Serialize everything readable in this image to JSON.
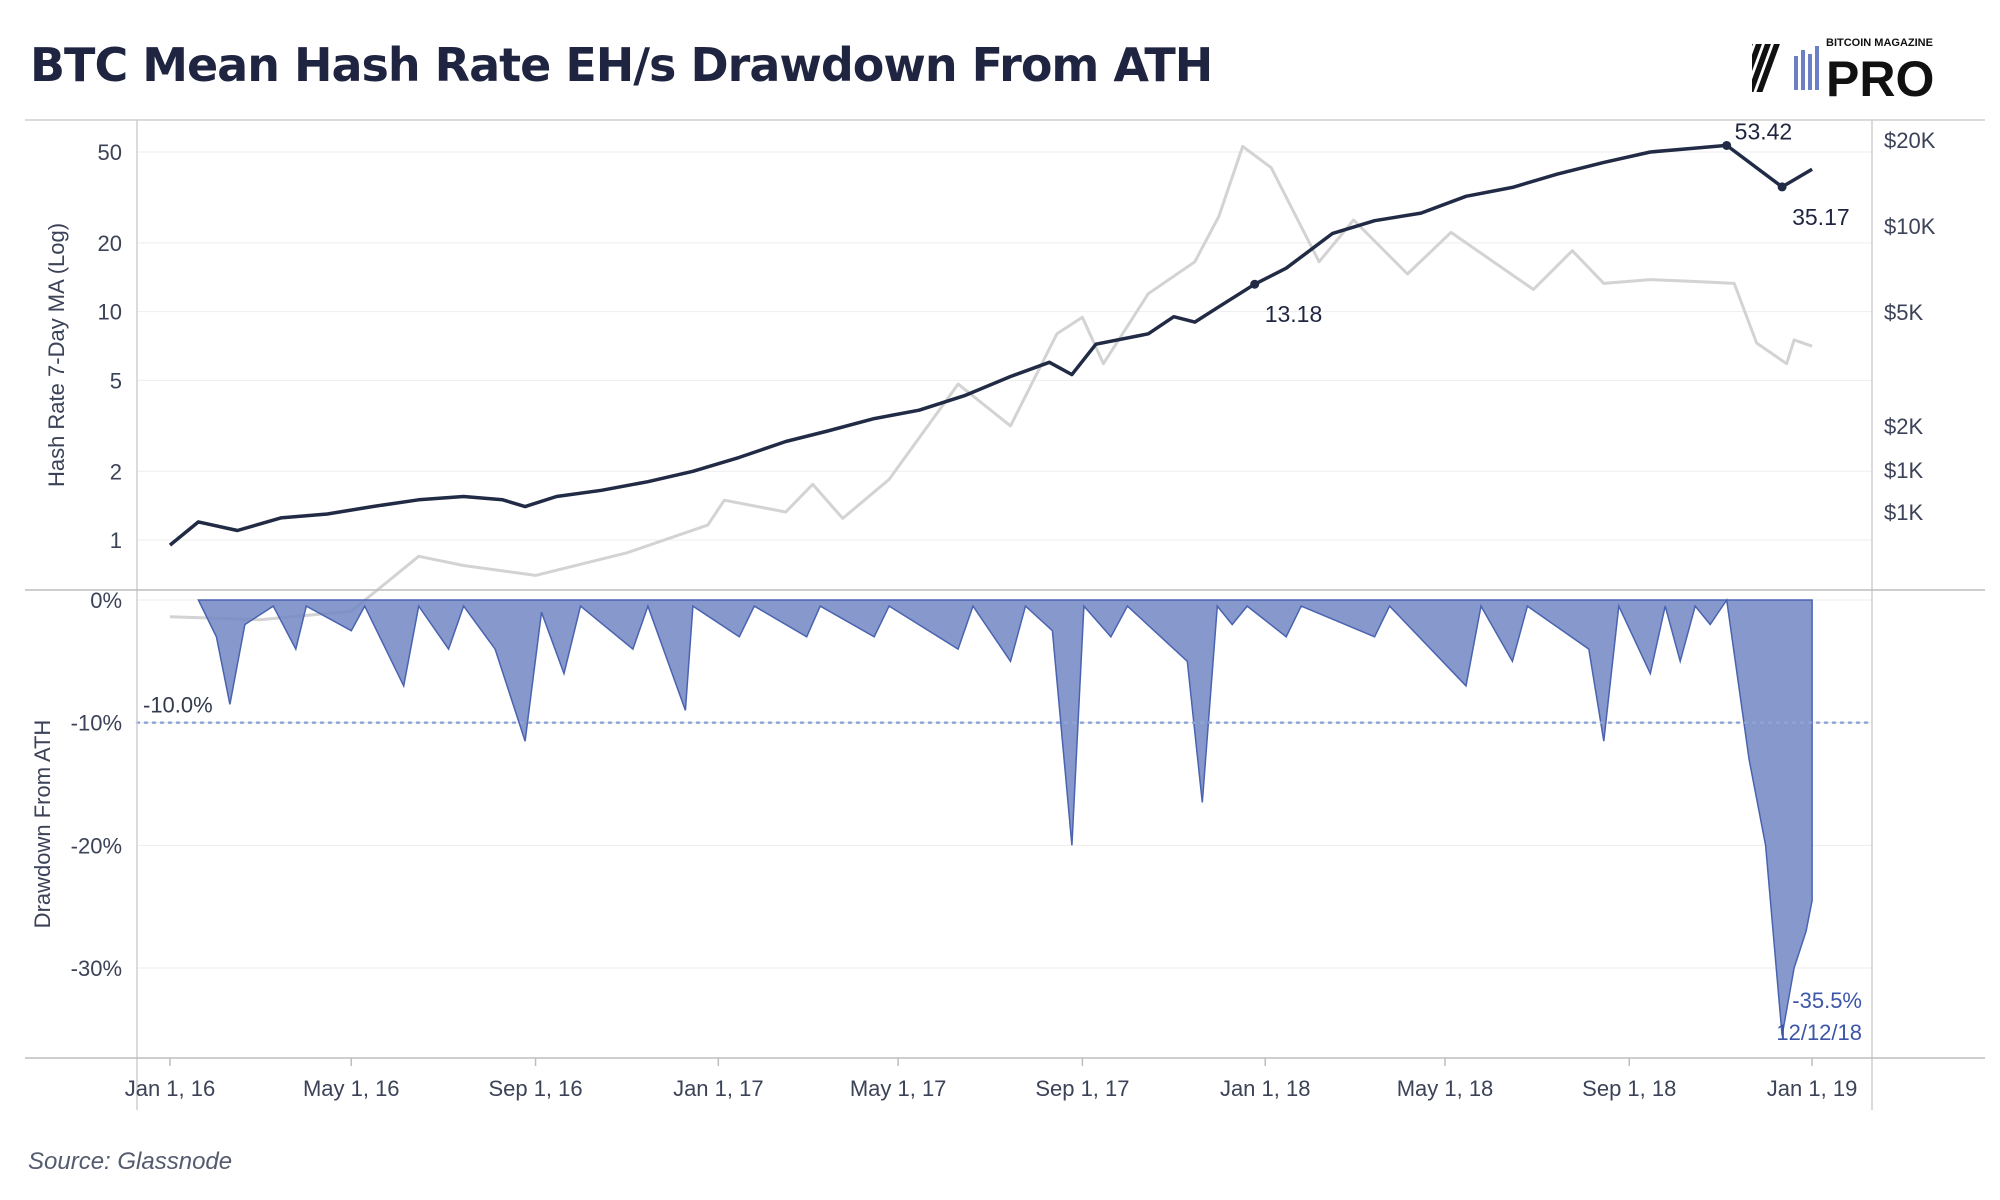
{
  "title": "BTC Mean Hash Rate EH/s Drawdown From ATH",
  "source": "Source: Glassnode",
  "logo": {
    "top": "BITCOIN MAGAZINE",
    "bottom": "PRO"
  },
  "colors": {
    "title": "#1f2540",
    "hash_rate": "#222b45",
    "price": "#d3d3d3",
    "drawdown_fill": "#7186c3",
    "drawdown_line": "#4a63b0",
    "reference_line": "#8fa3d6",
    "drawdown_label": "#3d56a8"
  },
  "chart_data": [
    {
      "type": "line",
      "y_scale": "log",
      "ylabel": "Hash Rate 7-Day MA (Log)",
      "y_ticks": [
        "1",
        "2",
        "5",
        "10",
        "20",
        "50"
      ],
      "y2_ticks": [
        "$1K",
        "$1K",
        "$2K",
        "$5K",
        "$10K",
        "$20K"
      ],
      "xlim": [
        "2015-12-10",
        "2019-02-10"
      ],
      "series": [
        {
          "role": "hash_rate",
          "unit": "EH/s",
          "points": [
            [
              "2016-01-01",
              0.95
            ],
            [
              "2016-01-20",
              1.2
            ],
            [
              "2016-02-15",
              1.1
            ],
            [
              "2016-03-15",
              1.25
            ],
            [
              "2016-04-15",
              1.3
            ],
            [
              "2016-05-15",
              1.4
            ],
            [
              "2016-06-15",
              1.5
            ],
            [
              "2016-07-15",
              1.55
            ],
            [
              "2016-08-10",
              1.5
            ],
            [
              "2016-08-25",
              1.4
            ],
            [
              "2016-09-15",
              1.55
            ],
            [
              "2016-10-15",
              1.65
            ],
            [
              "2016-11-15",
              1.8
            ],
            [
              "2016-12-15",
              2.0
            ],
            [
              "2017-01-15",
              2.3
            ],
            [
              "2017-02-15",
              2.7
            ],
            [
              "2017-03-15",
              3.0
            ],
            [
              "2017-04-15",
              3.4
            ],
            [
              "2017-05-15",
              3.7
            ],
            [
              "2017-06-15",
              4.3
            ],
            [
              "2017-07-15",
              5.2
            ],
            [
              "2017-08-10",
              6.0
            ],
            [
              "2017-08-25",
              5.3
            ],
            [
              "2017-09-10",
              7.2
            ],
            [
              "2017-10-15",
              8.0
            ],
            [
              "2017-11-01",
              9.5
            ],
            [
              "2017-11-15",
              9.0
            ],
            [
              "2017-12-01",
              10.5
            ],
            [
              "2017-12-25",
              13.18
            ],
            [
              "2018-01-15",
              15.5
            ],
            [
              "2018-02-15",
              22.0
            ],
            [
              "2018-03-15",
              25.0
            ],
            [
              "2018-04-15",
              27.0
            ],
            [
              "2018-05-15",
              32.0
            ],
            [
              "2018-06-15",
              35.0
            ],
            [
              "2018-07-15",
              40.0
            ],
            [
              "2018-08-15",
              45.0
            ],
            [
              "2018-09-15",
              50.0
            ],
            [
              "2018-10-15",
              52.0
            ],
            [
              "2018-11-05",
              53.42
            ],
            [
              "2018-12-12",
              35.17
            ],
            [
              "2019-01-01",
              42.0
            ]
          ],
          "annotations": [
            {
              "x": "2017-12-25",
              "value": 13.18,
              "label": "13.18"
            },
            {
              "x": "2018-11-05",
              "value": 53.42,
              "label": "53.42"
            },
            {
              "x": "2018-12-12",
              "value": 35.17,
              "label": "35.17"
            }
          ]
        },
        {
          "role": "btc_price",
          "unit": "USD",
          "points": [
            [
              "2016-01-01",
              430
            ],
            [
              "2016-03-01",
              420
            ],
            [
              "2016-05-01",
              450
            ],
            [
              "2016-06-15",
              700
            ],
            [
              "2016-07-15",
              650
            ],
            [
              "2016-09-01",
              600
            ],
            [
              "2016-11-01",
              720
            ],
            [
              "2016-12-25",
              900
            ],
            [
              "2017-01-05",
              1100
            ],
            [
              "2017-02-15",
              1000
            ],
            [
              "2017-03-05",
              1250
            ],
            [
              "2017-03-25",
              950
            ],
            [
              "2017-04-25",
              1300
            ],
            [
              "2017-06-10",
              2800
            ],
            [
              "2017-07-15",
              2000
            ],
            [
              "2017-08-15",
              4200
            ],
            [
              "2017-09-01",
              4800
            ],
            [
              "2017-09-15",
              3300
            ],
            [
              "2017-10-15",
              5800
            ],
            [
              "2017-11-15",
              7500
            ],
            [
              "2017-12-01",
              10800
            ],
            [
              "2017-12-17",
              19000
            ],
            [
              "2018-01-05",
              16000
            ],
            [
              "2018-02-06",
              7500
            ],
            [
              "2018-03-01",
              10500
            ],
            [
              "2018-04-06",
              6800
            ],
            [
              "2018-05-05",
              9500
            ],
            [
              "2018-06-29",
              6000
            ],
            [
              "2018-07-25",
              8200
            ],
            [
              "2018-08-15",
              6300
            ],
            [
              "2018-09-15",
              6500
            ],
            [
              "2018-10-15",
              6400
            ],
            [
              "2018-11-10",
              6300
            ],
            [
              "2018-11-25",
              3900
            ],
            [
              "2018-12-15",
              3300
            ],
            [
              "2018-12-20",
              4000
            ],
            [
              "2019-01-01",
              3800
            ]
          ]
        }
      ]
    },
    {
      "type": "area",
      "ylabel": "Drawdown From ATH",
      "y_ticks": [
        "0%",
        "-10%",
        "-20%",
        "-30%"
      ],
      "ylim": [
        -0.37,
        0
      ],
      "x_ticks": [
        "Jan 1, 16",
        "May 1, 16",
        "Sep 1, 16",
        "Jan 1, 17",
        "May 1, 17",
        "Sep 1, 17",
        "Jan 1, 18",
        "May 1, 18",
        "Sep 1, 18",
        "Jan 1, 19"
      ],
      "reference_line": {
        "value": -0.1,
        "label": "-10.0%"
      },
      "series": [
        {
          "role": "drawdown",
          "points": [
            [
              "2016-01-20",
              0
            ],
            [
              "2016-02-01",
              -0.03
            ],
            [
              "2016-02-10",
              -0.085
            ],
            [
              "2016-02-20",
              -0.02
            ],
            [
              "2016-03-10",
              -0.005
            ],
            [
              "2016-03-25",
              -0.04
            ],
            [
              "2016-04-01",
              -0.005
            ],
            [
              "2016-05-01",
              -0.025
            ],
            [
              "2016-05-10",
              -0.005
            ],
            [
              "2016-06-05",
              -0.07
            ],
            [
              "2016-06-15",
              -0.005
            ],
            [
              "2016-07-05",
              -0.04
            ],
            [
              "2016-07-15",
              -0.005
            ],
            [
              "2016-08-05",
              -0.04
            ],
            [
              "2016-08-25",
              -0.115
            ],
            [
              "2016-09-05",
              -0.01
            ],
            [
              "2016-09-20",
              -0.06
            ],
            [
              "2016-10-01",
              -0.005
            ],
            [
              "2016-11-05",
              -0.04
            ],
            [
              "2016-11-15",
              -0.005
            ],
            [
              "2016-12-10",
              -0.09
            ],
            [
              "2016-12-15",
              -0.005
            ],
            [
              "2017-01-15",
              -0.03
            ],
            [
              "2017-01-25",
              -0.005
            ],
            [
              "2017-03-01",
              -0.03
            ],
            [
              "2017-03-10",
              -0.005
            ],
            [
              "2017-04-15",
              -0.03
            ],
            [
              "2017-04-25",
              -0.005
            ],
            [
              "2017-06-10",
              -0.04
            ],
            [
              "2017-06-20",
              -0.005
            ],
            [
              "2017-07-15",
              -0.05
            ],
            [
              "2017-07-25",
              -0.005
            ],
            [
              "2017-08-12",
              -0.025
            ],
            [
              "2017-08-25",
              -0.2
            ],
            [
              "2017-09-02",
              -0.005
            ],
            [
              "2017-09-20",
              -0.03
            ],
            [
              "2017-10-01",
              -0.005
            ],
            [
              "2017-11-10",
              -0.05
            ],
            [
              "2017-11-20",
              -0.165
            ],
            [
              "2017-11-30",
              -0.005
            ],
            [
              "2017-12-10",
              -0.02
            ],
            [
              "2017-12-20",
              -0.005
            ],
            [
              "2018-01-15",
              -0.03
            ],
            [
              "2018-01-25",
              -0.005
            ],
            [
              "2018-03-15",
              -0.03
            ],
            [
              "2018-03-25",
              -0.005
            ],
            [
              "2018-05-15",
              -0.07
            ],
            [
              "2018-05-25",
              -0.005
            ],
            [
              "2018-06-15",
              -0.05
            ],
            [
              "2018-06-25",
              -0.005
            ],
            [
              "2018-08-05",
              -0.04
            ],
            [
              "2018-08-15",
              -0.115
            ],
            [
              "2018-08-25",
              -0.005
            ],
            [
              "2018-09-15",
              -0.06
            ],
            [
              "2018-09-25",
              -0.005
            ],
            [
              "2018-10-05",
              -0.05
            ],
            [
              "2018-10-15",
              -0.005
            ],
            [
              "2018-10-25",
              -0.02
            ],
            [
              "2018-11-05",
              0
            ],
            [
              "2018-11-20",
              -0.13
            ],
            [
              "2018-12-01",
              -0.2
            ],
            [
              "2018-12-12",
              -0.355
            ],
            [
              "2018-12-20",
              -0.3
            ],
            [
              "2018-12-28",
              -0.27
            ],
            [
              "2019-01-01",
              -0.245
            ]
          ],
          "annotation": {
            "value_label": "-35.5%",
            "date_label": "12/12/18"
          }
        }
      ]
    }
  ]
}
